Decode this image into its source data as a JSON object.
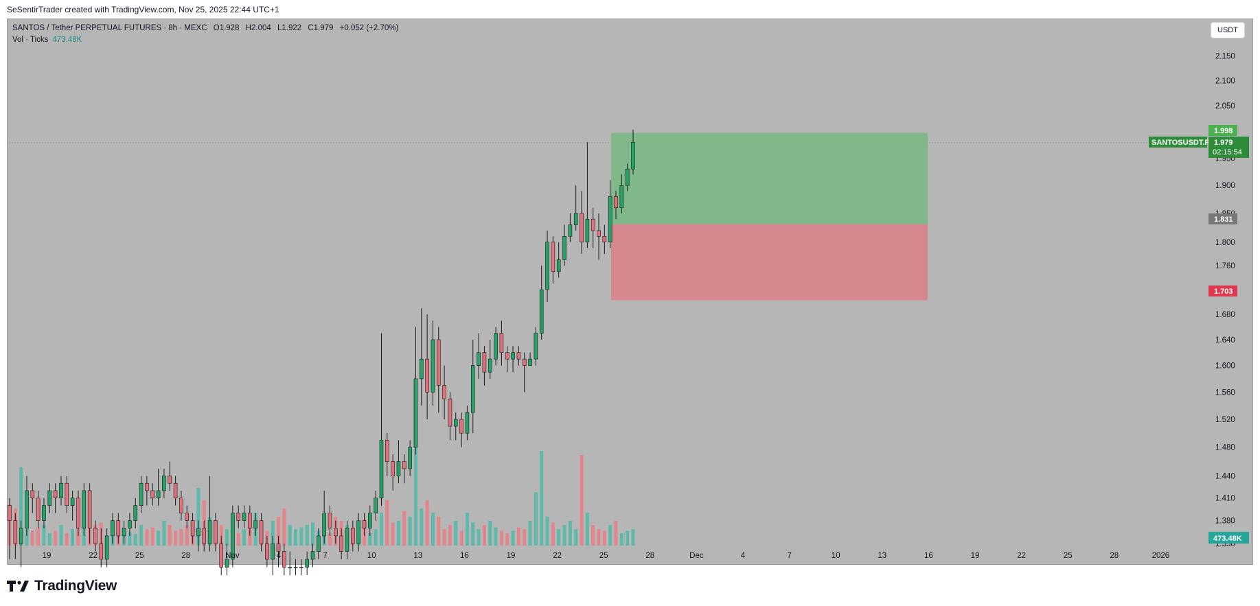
{
  "header": {
    "credit": "SeSentirTrader created with TradingView.com, Nov 25, 2025 22:44 UTC+1"
  },
  "legend": {
    "symbol": "SANTOS / Tether PERPETUAL FUTURES · 8h · MEXC",
    "open": "O1.928",
    "high": "H2.004",
    "low": "L1.922",
    "close": "C1.979",
    "change": "+0.052 (+2.70%)",
    "vol_label": "Vol · Ticks",
    "vol_value": "473.48K"
  },
  "currency_button": "USDT",
  "footer": {
    "brand": "TradingView"
  },
  "colors": {
    "up": "#26a269",
    "down": "#e0707a",
    "vol_up": "#5fb9aa",
    "vol_down": "#e3868c",
    "profit_zone": "#6db87a",
    "loss_zone": "#e07880",
    "background": "#b6b6b6"
  },
  "badges": {
    "target": "1.998",
    "symbol_tag": "SANTOSUSDT.P",
    "last_price": "1.979",
    "countdown": "02:15:54",
    "entry": "1.831",
    "stop": "1.703",
    "volume": "473.48K"
  },
  "chart_data": {
    "type": "candlestick",
    "title": "SANTOS / Tether PERPETUAL FUTURES · 8h · MEXC",
    "y_axis": {
      "scale": "log",
      "ticks": [
        "1.350",
        "1.380",
        "1.410",
        "1.440",
        "1.480",
        "1.520",
        "1.560",
        "1.600",
        "1.640",
        "1.680",
        "1.720",
        "1.760",
        "1.800",
        "1.850",
        "1.900",
        "1.950",
        "2.050",
        "2.100",
        "2.150"
      ]
    },
    "x_axis": {
      "ticks": [
        "19",
        "22",
        "25",
        "28",
        "Nov",
        "4",
        "7",
        "10",
        "13",
        "16",
        "19",
        "22",
        "25",
        "28",
        "Dec",
        "4",
        "7",
        "10",
        "13",
        "16",
        "19",
        "22",
        "25",
        "28",
        "2026"
      ]
    },
    "position": {
      "entry": 1.831,
      "target": 1.998,
      "stop": 1.703
    },
    "candles": [
      [
        1.4,
        1.38,
        1.41,
        1.33
      ],
      [
        1.38,
        1.35,
        1.39,
        1.33
      ],
      [
        1.35,
        1.37,
        1.38,
        1.32
      ],
      [
        1.37,
        1.42,
        1.44,
        1.36
      ],
      [
        1.42,
        1.41,
        1.43,
        1.39
      ],
      [
        1.41,
        1.38,
        1.42,
        1.37
      ],
      [
        1.38,
        1.4,
        1.41,
        1.37
      ],
      [
        1.4,
        1.42,
        1.43,
        1.39
      ],
      [
        1.42,
        1.41,
        1.43,
        1.39
      ],
      [
        1.41,
        1.43,
        1.44,
        1.4
      ],
      [
        1.43,
        1.4,
        1.44,
        1.39
      ],
      [
        1.4,
        1.41,
        1.42,
        1.38
      ],
      [
        1.41,
        1.37,
        1.42,
        1.36
      ],
      [
        1.37,
        1.42,
        1.43,
        1.36
      ],
      [
        1.42,
        1.37,
        1.43,
        1.35
      ],
      [
        1.37,
        1.35,
        1.38,
        1.34
      ],
      [
        1.35,
        1.33,
        1.37,
        1.32
      ],
      [
        1.33,
        1.36,
        1.37,
        1.32
      ],
      [
        1.36,
        1.38,
        1.39,
        1.35
      ],
      [
        1.38,
        1.36,
        1.39,
        1.35
      ],
      [
        1.36,
        1.37,
        1.38,
        1.35
      ],
      [
        1.37,
        1.38,
        1.39,
        1.36
      ],
      [
        1.38,
        1.4,
        1.41,
        1.37
      ],
      [
        1.4,
        1.43,
        1.44,
        1.39
      ],
      [
        1.43,
        1.42,
        1.44,
        1.4
      ],
      [
        1.42,
        1.41,
        1.43,
        1.4
      ],
      [
        1.41,
        1.42,
        1.45,
        1.4
      ],
      [
        1.42,
        1.44,
        1.45,
        1.41
      ],
      [
        1.44,
        1.43,
        1.46,
        1.42
      ],
      [
        1.43,
        1.41,
        1.44,
        1.4
      ],
      [
        1.41,
        1.39,
        1.42,
        1.38
      ],
      [
        1.39,
        1.38,
        1.4,
        1.37
      ],
      [
        1.38,
        1.36,
        1.39,
        1.35
      ],
      [
        1.36,
        1.37,
        1.38,
        1.34
      ],
      [
        1.37,
        1.35,
        1.38,
        1.34
      ],
      [
        1.35,
        1.38,
        1.44,
        1.34
      ],
      [
        1.38,
        1.35,
        1.39,
        1.34
      ],
      [
        1.35,
        1.32,
        1.36,
        1.31
      ],
      [
        1.32,
        1.33,
        1.35,
        1.31
      ],
      [
        1.33,
        1.39,
        1.4,
        1.32
      ],
      [
        1.39,
        1.38,
        1.4,
        1.37
      ],
      [
        1.38,
        1.39,
        1.4,
        1.37
      ],
      [
        1.39,
        1.37,
        1.4,
        1.36
      ],
      [
        1.37,
        1.38,
        1.39,
        1.36
      ],
      [
        1.38,
        1.35,
        1.39,
        1.34
      ],
      [
        1.35,
        1.33,
        1.36,
        1.32
      ],
      [
        1.33,
        1.35,
        1.36,
        1.31
      ],
      [
        1.35,
        1.34,
        1.36,
        1.32
      ],
      [
        1.34,
        1.32,
        1.35,
        1.31
      ],
      [
        1.32,
        1.32,
        1.34,
        1.31
      ],
      [
        1.32,
        1.32,
        1.33,
        1.31
      ],
      [
        1.32,
        1.32,
        1.33,
        1.31
      ],
      [
        1.32,
        1.33,
        1.34,
        1.31
      ],
      [
        1.33,
        1.34,
        1.35,
        1.32
      ],
      [
        1.34,
        1.36,
        1.37,
        1.33
      ],
      [
        1.36,
        1.39,
        1.42,
        1.35
      ],
      [
        1.39,
        1.37,
        1.4,
        1.36
      ],
      [
        1.37,
        1.36,
        1.38,
        1.35
      ],
      [
        1.36,
        1.34,
        1.37,
        1.33
      ],
      [
        1.34,
        1.37,
        1.38,
        1.33
      ],
      [
        1.37,
        1.35,
        1.38,
        1.34
      ],
      [
        1.35,
        1.38,
        1.39,
        1.34
      ],
      [
        1.38,
        1.37,
        1.39,
        1.36
      ],
      [
        1.37,
        1.39,
        1.4,
        1.36
      ],
      [
        1.39,
        1.41,
        1.42,
        1.38
      ],
      [
        1.41,
        1.49,
        1.65,
        1.4
      ],
      [
        1.49,
        1.46,
        1.5,
        1.44
      ],
      [
        1.46,
        1.44,
        1.47,
        1.42
      ],
      [
        1.44,
        1.46,
        1.49,
        1.43
      ],
      [
        1.46,
        1.45,
        1.47,
        1.43
      ],
      [
        1.45,
        1.48,
        1.49,
        1.44
      ],
      [
        1.48,
        1.58,
        1.66,
        1.47
      ],
      [
        1.58,
        1.61,
        1.69,
        1.54
      ],
      [
        1.61,
        1.56,
        1.68,
        1.52
      ],
      [
        1.56,
        1.64,
        1.67,
        1.54
      ],
      [
        1.64,
        1.57,
        1.66,
        1.53
      ],
      [
        1.57,
        1.55,
        1.6,
        1.52
      ],
      [
        1.55,
        1.51,
        1.56,
        1.49
      ],
      [
        1.51,
        1.52,
        1.53,
        1.49
      ],
      [
        1.52,
        1.5,
        1.53,
        1.48
      ],
      [
        1.5,
        1.53,
        1.54,
        1.49
      ],
      [
        1.53,
        1.6,
        1.64,
        1.5
      ],
      [
        1.6,
        1.62,
        1.65,
        1.58
      ],
      [
        1.62,
        1.59,
        1.63,
        1.57
      ],
      [
        1.59,
        1.61,
        1.64,
        1.58
      ],
      [
        1.61,
        1.65,
        1.66,
        1.6
      ],
      [
        1.65,
        1.62,
        1.67,
        1.6
      ],
      [
        1.62,
        1.61,
        1.63,
        1.59
      ],
      [
        1.61,
        1.62,
        1.63,
        1.59
      ],
      [
        1.62,
        1.61,
        1.63,
        1.6
      ],
      [
        1.61,
        1.6,
        1.62,
        1.56
      ],
      [
        1.6,
        1.61,
        1.62,
        1.6
      ],
      [
        1.61,
        1.65,
        1.66,
        1.6
      ],
      [
        1.65,
        1.72,
        1.76,
        1.64
      ],
      [
        1.72,
        1.8,
        1.82,
        1.7
      ],
      [
        1.8,
        1.75,
        1.81,
        1.73
      ],
      [
        1.75,
        1.77,
        1.8,
        1.74
      ],
      [
        1.77,
        1.81,
        1.83,
        1.76
      ],
      [
        1.81,
        1.83,
        1.85,
        1.8
      ],
      [
        1.83,
        1.85,
        1.9,
        1.82
      ],
      [
        1.85,
        1.8,
        1.89,
        1.78
      ],
      [
        1.8,
        1.84,
        1.98,
        1.79
      ],
      [
        1.84,
        1.82,
        1.86,
        1.79
      ],
      [
        1.82,
        1.81,
        1.85,
        1.77
      ],
      [
        1.81,
        1.8,
        1.83,
        1.78
      ],
      [
        1.8,
        1.88,
        1.91,
        1.79
      ],
      [
        1.88,
        1.86,
        1.89,
        1.84
      ],
      [
        1.86,
        1.9,
        1.92,
        1.85
      ],
      [
        1.9,
        1.93,
        1.94,
        1.89
      ],
      [
        1.93,
        1.98,
        2.004,
        1.92
      ]
    ],
    "volume": [
      50,
      45,
      95,
      20,
      18,
      22,
      25,
      15,
      18,
      25,
      15,
      20,
      30,
      35,
      40,
      25,
      28,
      12,
      15,
      20,
      18,
      16,
      14,
      25,
      20,
      22,
      18,
      30,
      25,
      18,
      20,
      25,
      22,
      70,
      55,
      35,
      18,
      25,
      20,
      18,
      15,
      20,
      22,
      40,
      25,
      18,
      30,
      35,
      45,
      25,
      20,
      22,
      25,
      28,
      18,
      25,
      15,
      35,
      30,
      25,
      22,
      30,
      32,
      15,
      20,
      40,
      55,
      28,
      30,
      42,
      35,
      120,
      45,
      55,
      40,
      35,
      20,
      25,
      30,
      18,
      40,
      28,
      20,
      25,
      30,
      22,
      18,
      15,
      18,
      22,
      20,
      30,
      65,
      115,
      35,
      28,
      20,
      25,
      30,
      20,
      110,
      40,
      25,
      20,
      18,
      25,
      30,
      15,
      18,
      20
    ]
  }
}
